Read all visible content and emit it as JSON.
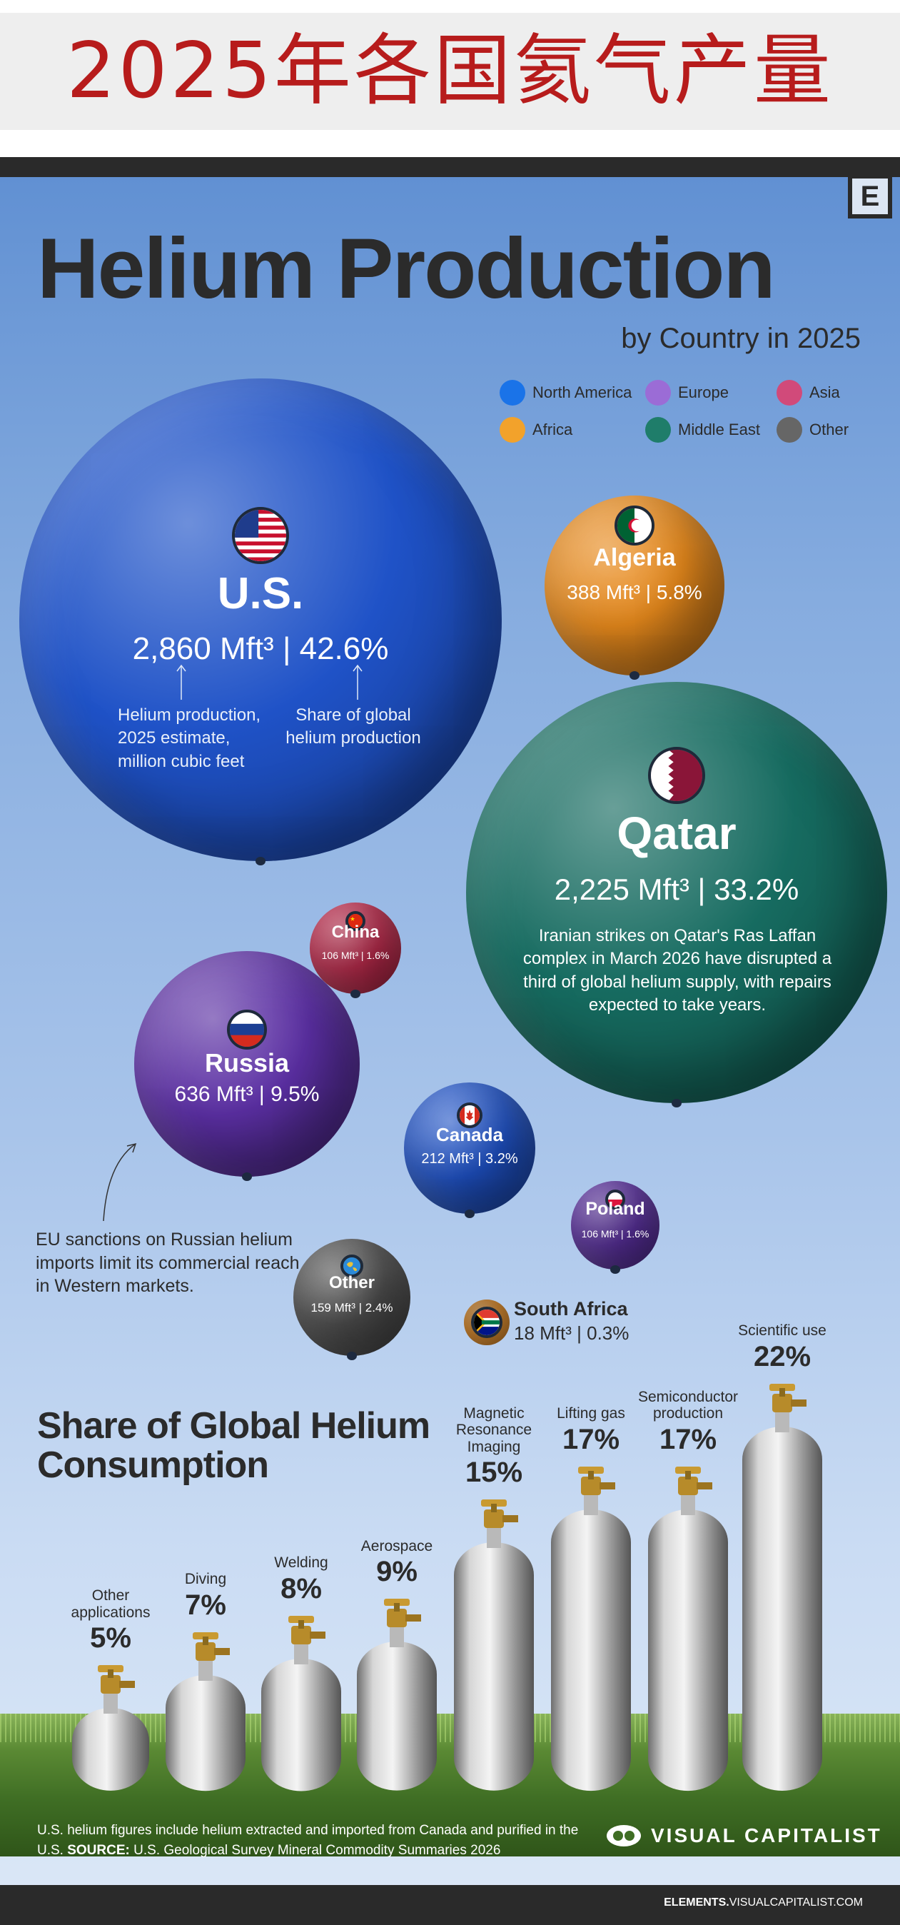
{
  "banner": {
    "title": "2025年各国氦气产量"
  },
  "header": {
    "logo": "E",
    "title": "Helium Production",
    "subtitle": "by Country in 2025"
  },
  "legend": [
    {
      "label": "North America",
      "color": "#1a73e8"
    },
    {
      "label": "Europe",
      "color": "#9b6cd6"
    },
    {
      "label": "Asia",
      "color": "#d14a7a"
    },
    {
      "label": "Africa",
      "color": "#f2a22b"
    },
    {
      "label": "Middle East",
      "color": "#1f7d6a"
    },
    {
      "label": "Other",
      "color": "#666666"
    }
  ],
  "colors": {
    "north_america": "#1f52c7",
    "europe": "#5b2fa3",
    "asia": "#c22a4d",
    "africa": "#e6891c",
    "middle_east": "#166b60",
    "other": "#4f4f4f"
  },
  "annotations": {
    "us_left": "Helium production, 2025 estimate, million cubic feet",
    "us_right": "Share of global helium production",
    "qatar": "Iranian strikes on Qatar's Ras Laffan complex in March 2026 have disrupted a third of global helium supply, with repairs expected to take years.",
    "russia": "EU sanctions on Russian helium imports limit its commercial reach in Western markets."
  },
  "chart_data": [
    {
      "type": "bubble",
      "title": "Helium Production",
      "subtitle": "by Country in 2025",
      "unit": "Mft³",
      "countries": [
        {
          "name": "U.S.",
          "region": "North America",
          "value": 2860,
          "value_label": "2,860",
          "share": 42.6,
          "share_label": "42.6%",
          "flag": "us-flag-icon"
        },
        {
          "name": "Qatar",
          "region": "Middle East",
          "value": 2225,
          "value_label": "2,225",
          "share": 33.2,
          "share_label": "33.2%",
          "flag": "qatar-flag-icon"
        },
        {
          "name": "Russia",
          "region": "Europe",
          "value": 636,
          "value_label": "636",
          "share": 9.5,
          "share_label": "9.5%",
          "flag": "russia-flag-icon"
        },
        {
          "name": "Algeria",
          "region": "Africa",
          "value": 388,
          "value_label": "388",
          "share": 5.8,
          "share_label": "5.8%",
          "flag": "algeria-flag-icon"
        },
        {
          "name": "Canada",
          "region": "North America",
          "value": 212,
          "value_label": "212",
          "share": 3.2,
          "share_label": "3.2%",
          "flag": "canada-flag-icon"
        },
        {
          "name": "Other",
          "region": "Other",
          "value": 159,
          "value_label": "159",
          "share": 2.4,
          "share_label": "2.4%",
          "flag": "globe-icon"
        },
        {
          "name": "China",
          "region": "Asia",
          "value": 106,
          "value_label": "106",
          "share": 1.6,
          "share_label": "1.6%",
          "flag": "china-flag-icon"
        },
        {
          "name": "Poland",
          "region": "Europe",
          "value": 106,
          "value_label": "106",
          "share": 1.6,
          "share_label": "1.6%",
          "flag": "poland-flag-icon"
        },
        {
          "name": "South Africa",
          "region": "Africa",
          "value": 18,
          "value_label": "18",
          "share": 0.3,
          "share_label": "0.3%",
          "flag": "south-africa-flag-icon"
        }
      ]
    },
    {
      "type": "bar",
      "title": "Share of Global Helium Consumption",
      "categories": [
        "Other applications",
        "Diving",
        "Welding",
        "Aerospace",
        "Magnetic Resonance Imaging",
        "Lifting gas",
        "Semiconductor production",
        "Scientific use"
      ],
      "values": [
        5,
        7,
        8,
        9,
        15,
        17,
        17,
        22
      ],
      "value_labels": [
        "5%",
        "7%",
        "8%",
        "9%",
        "15%",
        "17%",
        "17%",
        "22%"
      ]
    }
  ],
  "footer": {
    "note": "U.S. helium figures include helium extracted and imported from Canada and purified in the U.S.",
    "source_label": "SOURCE:",
    "source": "U.S. Geological Survey Mineral Commodity Summaries 2026",
    "brand": "VISUAL CAPITALIST",
    "url_bold": "ELEMENTS.",
    "url_rest": "VISUALCAPITALIST.COM"
  }
}
